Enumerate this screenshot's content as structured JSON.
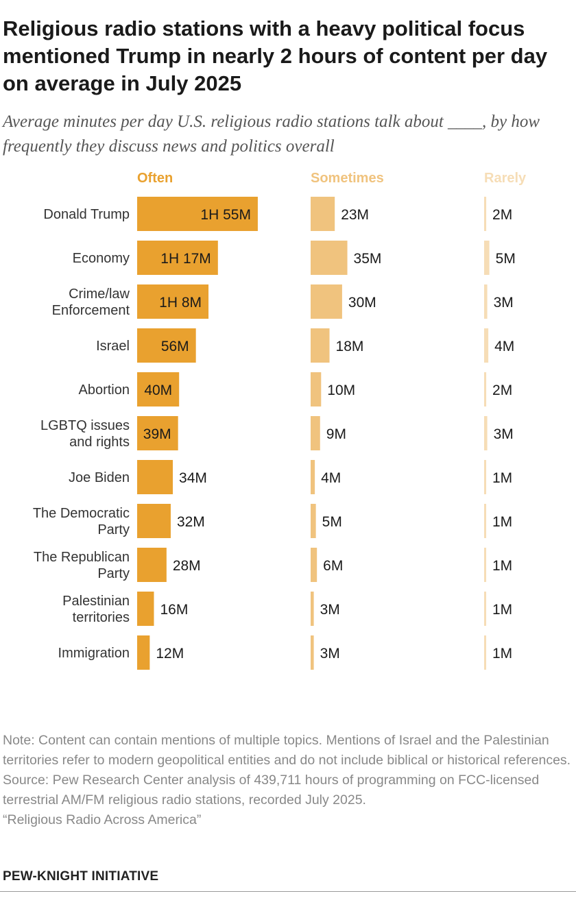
{
  "title": "Religious radio stations with a heavy political focus mentioned Trump in nearly 2 hours of content per day on average in July 2025",
  "subtitle": "Average minutes per day U.S. religious radio stations talk about ____, by how frequently they discuss news and politics overall",
  "colors": {
    "often": "#E9A12F",
    "sometimes": "#F0C37E",
    "rarely": "#F6DDB6"
  },
  "chart_data": {
    "type": "bar",
    "orientation": "horizontal",
    "unit": "minutes per day",
    "categories": [
      [
        "Donald Trump"
      ],
      [
        "Economy"
      ],
      [
        "Crime/law",
        "Enforcement"
      ],
      [
        "Israel"
      ],
      [
        "Abortion"
      ],
      [
        "LGBTQ issues",
        "and rights"
      ],
      [
        "Joe Biden"
      ],
      [
        "The Democratic",
        "Party"
      ],
      [
        "The Republican",
        "Party"
      ],
      [
        "Palestinian",
        "territories"
      ],
      [
        "Immigration"
      ]
    ],
    "series": [
      {
        "name": "Often",
        "values": [
          115,
          77,
          68,
          56,
          40,
          39,
          34,
          32,
          28,
          16,
          12
        ],
        "labels": [
          "1H 55M",
          "1H 17M",
          "1H 8M",
          "56M",
          "40M",
          "39M",
          "34M",
          "32M",
          "28M",
          "16M",
          "12M"
        ]
      },
      {
        "name": "Sometimes",
        "values": [
          23,
          35,
          30,
          18,
          10,
          9,
          4,
          5,
          6,
          3,
          3
        ],
        "labels": [
          "23M",
          "35M",
          "30M",
          "18M",
          "10M",
          "9M",
          "4M",
          "5M",
          "6M",
          "3M",
          "3M"
        ]
      },
      {
        "name": "Rarely",
        "values": [
          2,
          5,
          3,
          4,
          2,
          3,
          1,
          1,
          1,
          1,
          1
        ],
        "labels": [
          "2M",
          "5M",
          "3M",
          "4M",
          "2M",
          "3M",
          "1M",
          "1M",
          "1M",
          "1M",
          "1M"
        ]
      }
    ]
  },
  "notes": {
    "note": "Note: Content can contain mentions of multiple topics. Mentions of Israel and the Palestinian territories refer to modern geopolitical entities and do not include biblical or historical references.",
    "source": "Source: Pew Research Center analysis of 439,711 hours of programming on FCC-licensed terrestrial AM/FM religious radio stations, recorded July 2025.",
    "report": "“Religious Radio Across America”"
  },
  "branding": "PEW-KNIGHT INITIATIVE"
}
